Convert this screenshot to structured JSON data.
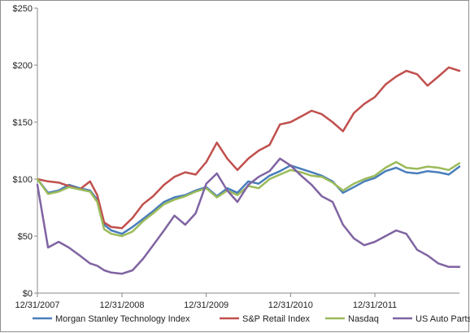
{
  "chart_data": {
    "type": "line",
    "title": "",
    "xlabel": "",
    "ylabel": "",
    "ylim": [
      0,
      250
    ],
    "yticks": [
      0,
      50,
      100,
      150,
      200,
      250
    ],
    "ytick_labels": [
      "$0",
      "$50",
      "$100",
      "$150",
      "$200",
      "$250"
    ],
    "xlim": [
      "2007-12-31",
      "2012-12-31"
    ],
    "xticks": [
      "2007-12-31",
      "2008-12-31",
      "2009-12-31",
      "2010-12-31",
      "2011-12-31"
    ],
    "xtick_labels": [
      "12/31/2007",
      "12/31/2008",
      "12/31/2009",
      "12/31/2010",
      "12/31/2011"
    ],
    "grid": false,
    "legend_position": "bottom",
    "x": [
      "2007-12-31",
      "2008-02-15",
      "2008-04-01",
      "2008-05-15",
      "2008-07-01",
      "2008-08-15",
      "2008-09-15",
      "2008-10-15",
      "2008-11-15",
      "2008-12-31",
      "2009-02-15",
      "2009-04-01",
      "2009-05-15",
      "2009-07-01",
      "2009-08-15",
      "2009-10-01",
      "2009-11-15",
      "2009-12-31",
      "2010-02-15",
      "2010-04-01",
      "2010-05-15",
      "2010-07-01",
      "2010-08-15",
      "2010-10-01",
      "2010-11-15",
      "2010-12-31",
      "2011-02-15",
      "2011-04-01",
      "2011-05-15",
      "2011-07-01",
      "2011-08-15",
      "2011-10-01",
      "2011-11-15",
      "2011-12-31",
      "2012-02-15",
      "2012-04-01",
      "2012-05-15",
      "2012-07-01",
      "2012-08-15",
      "2012-10-01",
      "2012-11-15",
      "2012-12-31"
    ],
    "series": [
      {
        "name": "Morgan Stanley Technology Index",
        "color": "#4a7ebb",
        "values": [
          100,
          88,
          90,
          95,
          92,
          90,
          82,
          60,
          55,
          52,
          58,
          65,
          72,
          80,
          84,
          86,
          90,
          93,
          85,
          92,
          88,
          98,
          96,
          103,
          107,
          112,
          109,
          106,
          103,
          98,
          88,
          93,
          98,
          101,
          107,
          110,
          106,
          105,
          107,
          106,
          104,
          111
        ]
      },
      {
        "name": "S&P Retail Index",
        "color": "#c0504d",
        "values": [
          100,
          98,
          97,
          94,
          91,
          98,
          86,
          62,
          58,
          57,
          66,
          78,
          85,
          95,
          102,
          106,
          104,
          115,
          132,
          118,
          108,
          118,
          125,
          130,
          148,
          150,
          155,
          160,
          157,
          150,
          142,
          158,
          166,
          172,
          183,
          190,
          195,
          192,
          182,
          190,
          198,
          195
        ]
      },
      {
        "name": "Nasdaq",
        "color": "#9bbb59",
        "values": [
          100,
          87,
          89,
          93,
          91,
          89,
          80,
          56,
          52,
          50,
          54,
          63,
          70,
          78,
          82,
          85,
          89,
          92,
          84,
          90,
          86,
          94,
          92,
          100,
          104,
          108,
          106,
          103,
          102,
          97,
          90,
          96,
          100,
          103,
          110,
          115,
          110,
          109,
          111,
          110,
          108,
          114
        ]
      },
      {
        "name": "US Auto Parts",
        "color": "#8064a2",
        "values": [
          95,
          40,
          45,
          40,
          33,
          26,
          24,
          20,
          18,
          17,
          20,
          30,
          42,
          55,
          68,
          60,
          70,
          96,
          105,
          90,
          80,
          95,
          102,
          107,
          118,
          112,
          103,
          95,
          85,
          80,
          60,
          48,
          42,
          45,
          50,
          55,
          52,
          38,
          33,
          26,
          23,
          23
        ]
      }
    ]
  }
}
